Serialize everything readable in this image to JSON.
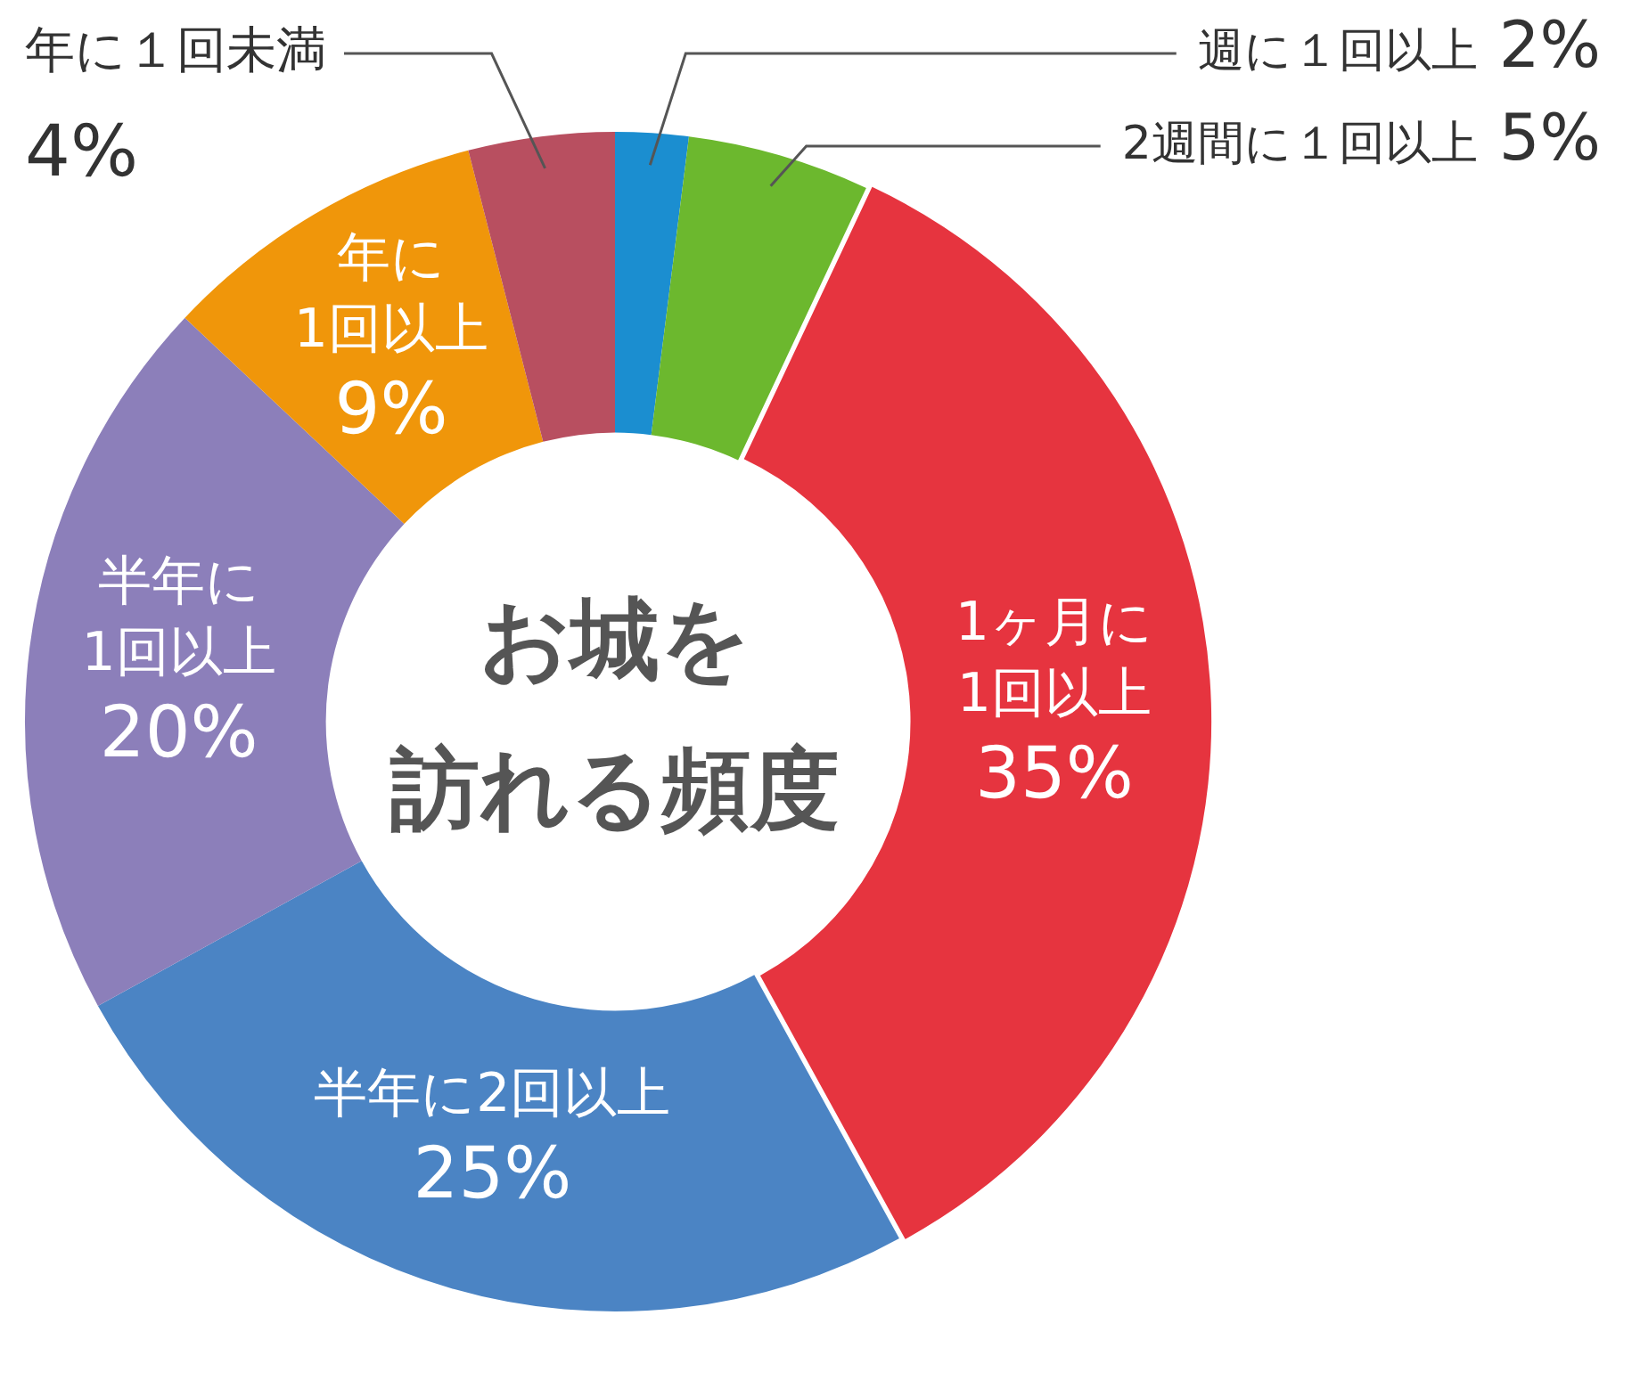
{
  "chart_data": {
    "type": "donut",
    "title": "お城を訪れる頻度",
    "categories": [
      "週に１回以上",
      "2週間に１回以上",
      "1ヶ月に1回以上",
      "半年に2回以上",
      "半年に1回以上",
      "年に1回以上",
      "年に１回未満"
    ],
    "values": [
      2,
      5,
      35,
      25,
      20,
      9,
      4
    ],
    "value_labels": [
      "2%",
      "5%",
      "35%",
      "25%",
      "20%",
      "9%",
      "4%"
    ],
    "colors": [
      "#1b8ed0",
      "#6cb82e",
      "#e6343f",
      "#4b84c4",
      "#8c7fba",
      "#f0960a",
      "#b84f60"
    ],
    "legend": false
  }
}
